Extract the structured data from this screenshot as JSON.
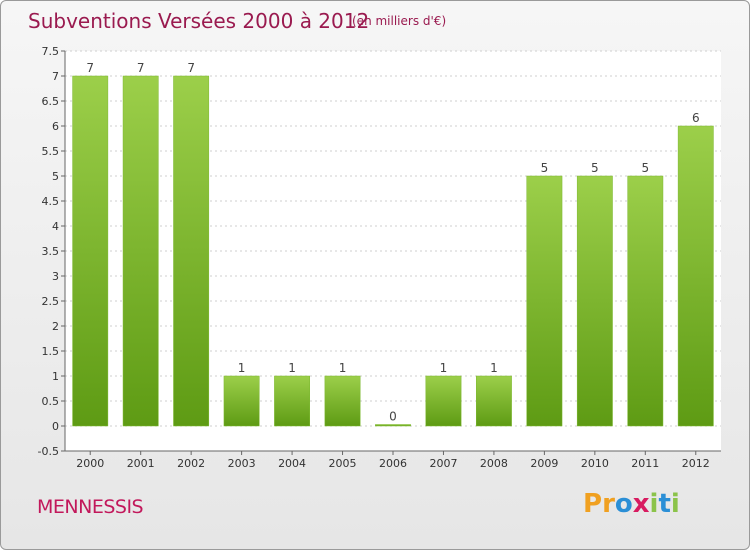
{
  "header": {
    "title": "Subventions Versées 2000 à 2012",
    "subtitle": "(en milliers d'€)"
  },
  "footer": {
    "commune": "MENNESSIS",
    "brand": "Proxiti",
    "brand_letters": [
      "P",
      "r",
      "o",
      "x",
      "i",
      "t",
      "i"
    ],
    "brand_colors": [
      "#f0a020",
      "#f0a020",
      "#2b8fd6",
      "#d81b60",
      "#8bc34a",
      "#2b8fd6",
      "#8bc34a"
    ]
  },
  "colors": {
    "bar_top": "#9ccf4a",
    "bar_bottom": "#5e9b14",
    "title": "#9a1a4f",
    "commune": "#c2185b"
  },
  "chart_data": {
    "type": "bar",
    "title": "Subventions Versées 2000 à 2012",
    "subtitle": "(en milliers d'€)",
    "xlabel": "",
    "ylabel": "",
    "categories": [
      "2000",
      "2001",
      "2002",
      "2003",
      "2004",
      "2005",
      "2006",
      "2007",
      "2008",
      "2009",
      "2010",
      "2011",
      "2012"
    ],
    "values": [
      7,
      7,
      7,
      1,
      1,
      1,
      0,
      1,
      1,
      5,
      5,
      5,
      6
    ],
    "data_labels": [
      "7",
      "7",
      "7",
      "1",
      "1",
      "1",
      "0",
      "1",
      "1",
      "5",
      "5",
      "5",
      "6"
    ],
    "ylim": [
      -0.5,
      7.5
    ],
    "yticks": [
      -0.5,
      0,
      0.5,
      1,
      1.5,
      2,
      2.5,
      3,
      3.5,
      4,
      4.5,
      5,
      5.5,
      6,
      6.5,
      7,
      7.5
    ],
    "ytick_labels": [
      "-0.5",
      "0",
      "0.5",
      "1",
      "1.5",
      "2",
      "2.5",
      "3",
      "3.5",
      "4",
      "4.5",
      "5",
      "5.5",
      "6",
      "6.5",
      "7",
      "7.5"
    ],
    "grid": true,
    "legend": false
  }
}
